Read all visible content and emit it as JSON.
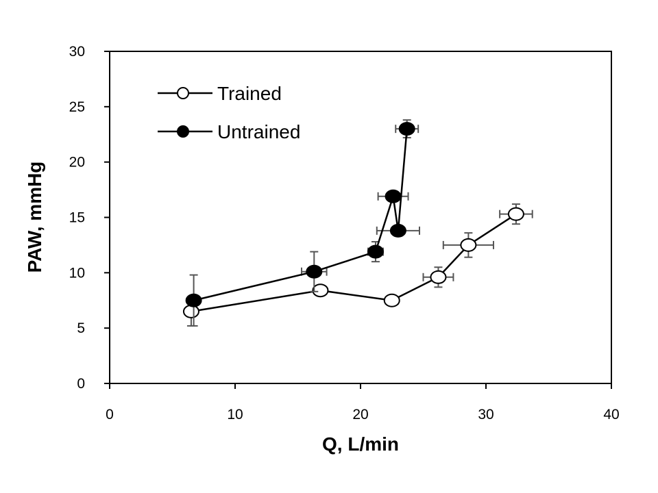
{
  "chart_data": {
    "type": "scatter",
    "xlabel": "Q, L/min",
    "ylabel": "PAW, mmHg",
    "xlim": [
      0,
      40
    ],
    "ylim": [
      0,
      30
    ],
    "xticks": [
      "0",
      "10",
      "20",
      "30",
      "40"
    ],
    "yticks": [
      "0",
      "5",
      "10",
      "15",
      "20",
      "25",
      "30"
    ],
    "grid": false,
    "legend": "top-left",
    "series": [
      {
        "name": "Trained",
        "marker": "open-circle",
        "connected": true,
        "points": [
          {
            "x": 6.5,
            "y": 6.5,
            "y_err": 1.3,
            "x_err": 0
          },
          {
            "x": 16.8,
            "y": 8.4,
            "y_err": 0,
            "x_err": 0
          },
          {
            "x": 22.5,
            "y": 7.5,
            "y_err": 0,
            "x_err": 0.5
          },
          {
            "x": 26.2,
            "y": 9.6,
            "y_err": 0.9,
            "x_err": 1.2
          },
          {
            "x": 28.6,
            "y": 12.5,
            "y_err": 1.1,
            "x_err": 2.0
          },
          {
            "x": 32.4,
            "y": 15.3,
            "y_err": 0.9,
            "x_err": 1.3
          }
        ]
      },
      {
        "name": "Untrained",
        "marker": "filled-circle",
        "connected": true,
        "points": [
          {
            "x": 6.7,
            "y": 7.5,
            "y_err": 2.3,
            "x_err": 0
          },
          {
            "x": 16.3,
            "y": 10.1,
            "y_err": 1.8,
            "x_err": 1.0
          },
          {
            "x": 21.2,
            "y": 11.9,
            "y_err": 0.9,
            "x_err": 0.6
          },
          {
            "x": 22.6,
            "y": 16.9,
            "y_err": 0,
            "x_err": 1.2
          },
          {
            "x": 23.0,
            "y": 13.8,
            "y_err": 0,
            "x_err": 1.7
          },
          {
            "x": 23.7,
            "y": 23.0,
            "y_err": 0.8,
            "x_err": 0.9
          }
        ]
      }
    ]
  },
  "colors": {
    "axis": "#000000",
    "line": "#000000",
    "error_bar": "#555555",
    "open_fill": "#ffffff",
    "filled_fill": "#000000"
  }
}
